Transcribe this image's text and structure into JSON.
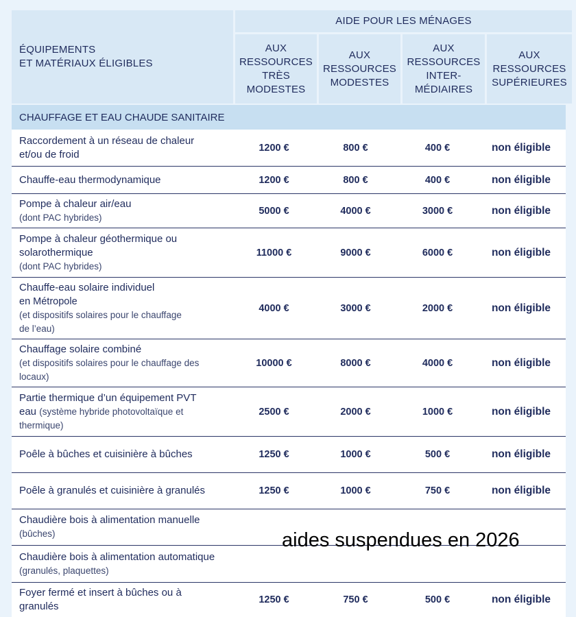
{
  "header": {
    "label": "ÉQUIPEMENTS\nET MATÉRIAUX ÉLIGIBLES",
    "group": "AIDE POUR LES MÉNAGES",
    "columns": [
      "AUX\nRESSOURCES\nTRÈS\nMODESTES",
      "AUX\nRESSOURCES\nMODESTES",
      "AUX\nRESSOURCES\nINTER-\nMÉDIAIRES",
      "AUX\nRESSOURCES\nSUPÉRIEURES"
    ]
  },
  "section": "CHAUFFAGE ET EAU CHAUDE SANITAIRE",
  "rows": [
    {
      "main": "Raccordement à un réseau de chaleur et/ou de froid",
      "extra": "",
      "note": "",
      "values": [
        "1200 €",
        "800 €",
        "400 €",
        "non éligible"
      ]
    },
    {
      "main": "Chauffe-eau thermodynamique",
      "extra": "",
      "note": "",
      "values": [
        "1200 €",
        "800 €",
        "400 €",
        "non éligible"
      ]
    },
    {
      "main": "Pompe à chaleur air/eau",
      "extra": "",
      "note": "(dont PAC hybrides)",
      "values": [
        "5000 €",
        "4000 €",
        "3000 €",
        "non éligible"
      ]
    },
    {
      "main": "Pompe à chaleur géothermique ou solarothermique",
      "extra": "",
      "note": "(dont PAC hybrides)",
      "values": [
        "11000 €",
        "9000 €",
        "6000 €",
        "non éligible"
      ]
    },
    {
      "main": "Chauffe-eau solaire individuel",
      "extra": "en Métropole",
      "note": "(et dispositifs solaires pour le chauffage de l’eau)",
      "values": [
        "4000 €",
        "3000 €",
        "2000 €",
        "non éligible"
      ]
    },
    {
      "main": "Chauffage solaire combiné",
      "extra": "",
      "note": "(et dispositifs solaires pour le chauffage des locaux)",
      "values": [
        "10000 €",
        "8000 €",
        "4000 €",
        "non éligible"
      ]
    },
    {
      "main": "Partie thermique d’un équipement PVT eau",
      "extra": "",
      "note": "(système hybride photovoltaïque et thermique)",
      "values": [
        "2500 €",
        "2000 €",
        "1000 €",
        "non éligible"
      ]
    },
    {
      "main": "Poêle à bûches et cuisinière à bûches",
      "extra": "",
      "note": "",
      "values": [
        "1250 €",
        "1000 €",
        "500 €",
        "non éligible"
      ]
    },
    {
      "main": "Poêle à granulés et cuisinière à granulés",
      "extra": "",
      "note": "",
      "values": [
        "1250 €",
        "1000 €",
        "750 €",
        "non éligible"
      ]
    },
    {
      "main": "Chaudière bois à alimentation manuelle",
      "extra": "",
      "note": "(bûches)",
      "values": [
        "",
        "",
        "",
        ""
      ]
    },
    {
      "main": "Chaudière bois à alimentation automatique",
      "extra": "",
      "note": "(granulés, plaquettes)",
      "values": [
        "",
        "",
        "",
        ""
      ]
    },
    {
      "main": "Foyer fermé et insert à bûches ou à granulés",
      "extra": "",
      "note": "",
      "values": [
        "1250 €",
        "750 €",
        "500 €",
        "non éligible"
      ]
    }
  ],
  "annotation": "aides suspendues en 2026"
}
